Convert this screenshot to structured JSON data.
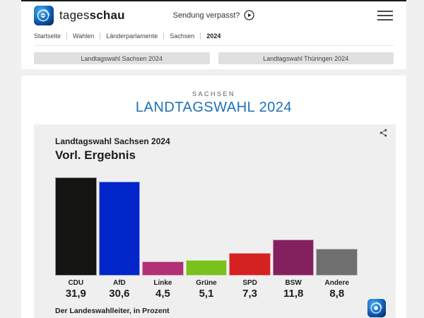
{
  "header": {
    "brand_regular": "tages",
    "brand_bold": "schau",
    "sendung_verpasst": "Sendung verpasst?",
    "breadcrumb": [
      "Startseite",
      "Wahlen",
      "Länderparlamente",
      "Sachsen",
      "2024"
    ]
  },
  "tabs": [
    {
      "label": "Landtagswahl Sachsen 2024"
    },
    {
      "label": "Landtagswahl Thüringen 2024"
    }
  ],
  "page": {
    "kicker": "SACHSEN",
    "title": "LANDTAGSWAHL 2024"
  },
  "chart": {
    "title": "Landtagswahl Sachsen 2024",
    "subtitle": "Vorl. Ergebnis",
    "source": "Der Landeswahlleiter, in Prozent"
  },
  "chart_data": {
    "type": "bar",
    "title": "Landtagswahl Sachsen 2024 — Vorl. Ergebnis",
    "categories": [
      "CDU",
      "AfD",
      "Linke",
      "Grüne",
      "SPD",
      "BSW",
      "Andere"
    ],
    "values": [
      31.9,
      30.6,
      4.5,
      5.1,
      7.3,
      11.8,
      8.8
    ],
    "value_labels": [
      "31,9",
      "30,6",
      "4,5",
      "5,1",
      "7,3",
      "11,8",
      "8,8"
    ],
    "colors": [
      "#141413",
      "#0125c8",
      "#b23075",
      "#7ac11e",
      "#d52121",
      "#83215f",
      "#706f70"
    ],
    "ylabel": "Prozent",
    "ylim": [
      0,
      34
    ],
    "grid": false,
    "legend": "none",
    "annotation": "Der Landeswahlleiter, in Prozent"
  },
  "icons": {
    "share": "share-nodes",
    "play": "play-circle",
    "menu": "hamburger",
    "brand": "tagesschau-globe"
  },
  "colors": {
    "page_background": "#f0f0f0",
    "card_background": "#ffffff",
    "chart_card_background": "#efefef",
    "title_blue": "#1d70b8",
    "tab_background": "#e0e0e0",
    "text_dark": "#1d1d1d"
  }
}
